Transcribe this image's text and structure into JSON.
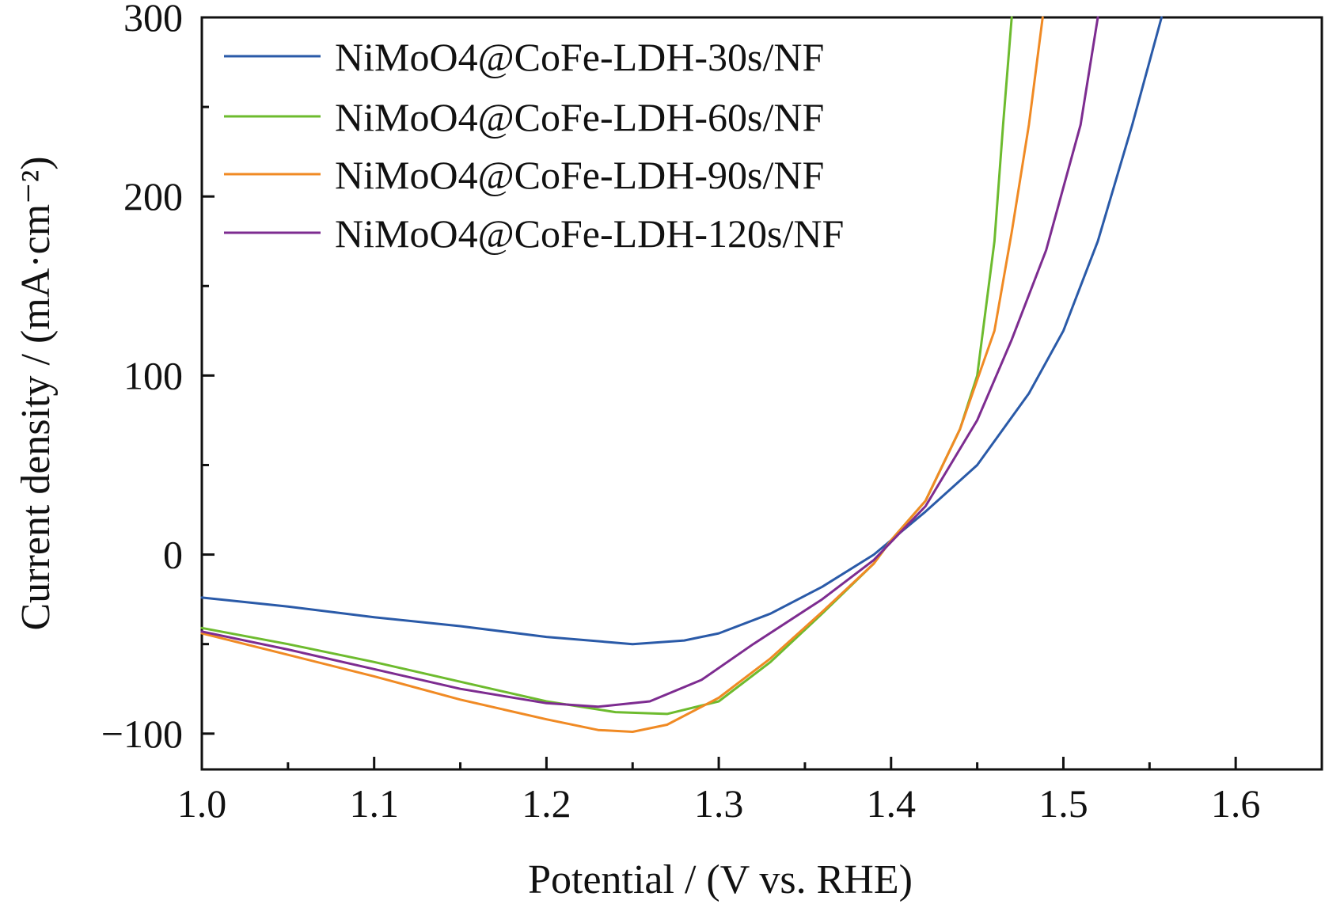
{
  "chart_data": {
    "type": "line",
    "xlabel": "Potential / (V vs. RHE)",
    "ylabel": "Current density / (mA·cm⁻²)",
    "xlim": [
      1.0,
      1.65
    ],
    "ylim": [
      -120,
      300
    ],
    "x_ticks": [
      "1.0",
      "1.1",
      "1.2",
      "1.3",
      "1.4",
      "1.5",
      "1.6"
    ],
    "y_ticks": [
      "−100",
      "0",
      "100",
      "200",
      "300"
    ],
    "legend_placement": "top-left",
    "grid": false,
    "series": [
      {
        "name": "NiMoO4@CoFe-LDH-30s/NF",
        "color": "#2a5aa8",
        "points": [
          [
            1.0,
            -24
          ],
          [
            1.05,
            -29
          ],
          [
            1.1,
            -35
          ],
          [
            1.15,
            -40
          ],
          [
            1.2,
            -46
          ],
          [
            1.25,
            -50
          ],
          [
            1.28,
            -48
          ],
          [
            1.3,
            -44
          ],
          [
            1.33,
            -33
          ],
          [
            1.36,
            -18
          ],
          [
            1.39,
            0
          ],
          [
            1.4,
            8
          ],
          [
            1.42,
            24
          ],
          [
            1.45,
            50
          ],
          [
            1.48,
            90
          ],
          [
            1.5,
            125
          ],
          [
            1.52,
            175
          ],
          [
            1.54,
            240
          ],
          [
            1.557,
            300
          ]
        ]
      },
      {
        "name": "NiMoO4@CoFe-LDH-60s/NF",
        "color": "#6dbb2e",
        "points": [
          [
            1.0,
            -41
          ],
          [
            1.05,
            -50
          ],
          [
            1.1,
            -60
          ],
          [
            1.15,
            -71
          ],
          [
            1.2,
            -82
          ],
          [
            1.24,
            -88
          ],
          [
            1.27,
            -89
          ],
          [
            1.3,
            -82
          ],
          [
            1.33,
            -60
          ],
          [
            1.36,
            -33
          ],
          [
            1.39,
            -5
          ],
          [
            1.4,
            8
          ],
          [
            1.42,
            30
          ],
          [
            1.44,
            70
          ],
          [
            1.45,
            100
          ],
          [
            1.46,
            175
          ],
          [
            1.465,
            240
          ],
          [
            1.47,
            300
          ]
        ]
      },
      {
        "name": "NiMoO4@CoFe-LDH-90s/NF",
        "color": "#f08a24",
        "points": [
          [
            1.0,
            -44
          ],
          [
            1.05,
            -56
          ],
          [
            1.1,
            -68
          ],
          [
            1.15,
            -81
          ],
          [
            1.2,
            -92
          ],
          [
            1.23,
            -98
          ],
          [
            1.25,
            -99
          ],
          [
            1.27,
            -95
          ],
          [
            1.3,
            -80
          ],
          [
            1.33,
            -58
          ],
          [
            1.36,
            -32
          ],
          [
            1.39,
            -5
          ],
          [
            1.4,
            8
          ],
          [
            1.42,
            30
          ],
          [
            1.44,
            70
          ],
          [
            1.46,
            125
          ],
          [
            1.47,
            180
          ],
          [
            1.48,
            240
          ],
          [
            1.488,
            300
          ]
        ]
      },
      {
        "name": "NiMoO4@CoFe-LDH-120s/NF",
        "color": "#7d2c90",
        "points": [
          [
            1.0,
            -43
          ],
          [
            1.05,
            -53
          ],
          [
            1.1,
            -64
          ],
          [
            1.15,
            -75
          ],
          [
            1.2,
            -83
          ],
          [
            1.23,
            -85
          ],
          [
            1.26,
            -82
          ],
          [
            1.29,
            -70
          ],
          [
            1.32,
            -50
          ],
          [
            1.36,
            -25
          ],
          [
            1.39,
            -3
          ],
          [
            1.4,
            7
          ],
          [
            1.42,
            27
          ],
          [
            1.45,
            75
          ],
          [
            1.47,
            120
          ],
          [
            1.49,
            170
          ],
          [
            1.51,
            240
          ],
          [
            1.52,
            300
          ]
        ]
      }
    ]
  }
}
